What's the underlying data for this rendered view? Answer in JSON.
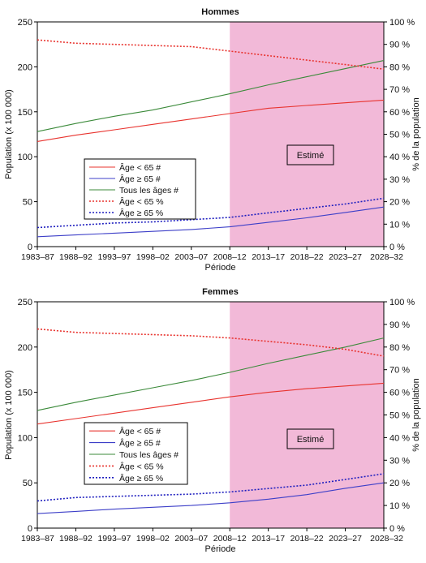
{
  "chart_data": [
    {
      "type": "line",
      "title": "Hommes",
      "xlabel": "Période",
      "ylabel": "Population (x 100 000)",
      "y2label": "% de la population",
      "ylim": [
        0,
        250
      ],
      "y2lim": [
        0,
        100
      ],
      "yticks": [
        "0",
        "50",
        "100",
        "150",
        "200",
        "250"
      ],
      "y2ticks": [
        "0 %",
        "10 %",
        "20 %",
        "30 %",
        "40 %",
        "50 %",
        "60 %",
        "70 %",
        "80 %",
        "90 %",
        "100 %"
      ],
      "categories": [
        "1983–87",
        "1988–92",
        "1993–97",
        "1998–02",
        "2003–07",
        "2008–12",
        "2013–17",
        "2018–22",
        "2023–27",
        "2028–32"
      ],
      "estimated_from": "2008–12",
      "estimated_label": "Estimé",
      "legend_position": "left-center",
      "series": [
        {
          "name": "Âge < 65 #",
          "axis": "left",
          "style": "solid",
          "color": "#e8332e",
          "values": [
            117,
            124,
            130,
            136,
            142,
            148,
            154,
            157,
            160,
            163
          ]
        },
        {
          "name": "Âge ≥ 65 #",
          "axis": "left",
          "style": "solid",
          "color": "#3d3fc8",
          "values": [
            11,
            13,
            15,
            17,
            19,
            22,
            27,
            32,
            38,
            44
          ]
        },
        {
          "name": "Tous les âges #",
          "axis": "left",
          "style": "solid",
          "color": "#3b8a3a",
          "values": [
            128,
            137,
            145,
            152,
            161,
            170,
            180,
            189,
            198,
            207
          ]
        },
        {
          "name": "Âge < 65 %",
          "axis": "right",
          "style": "dotted",
          "color": "#e8332e",
          "values": [
            92,
            90.5,
            90,
            89.5,
            89,
            87,
            85,
            83,
            81,
            79
          ]
        },
        {
          "name": "Âge ≥ 65 %",
          "axis": "right",
          "style": "dotted",
          "color": "#1f1fbf",
          "values": [
            8.5,
            9.5,
            10.5,
            11,
            12,
            13,
            15,
            17,
            19,
            21.5
          ]
        }
      ]
    },
    {
      "type": "line",
      "title": "Femmes",
      "xlabel": "Période",
      "ylabel": "Population (x 100 000)",
      "y2label": "% de la population",
      "ylim": [
        0,
        250
      ],
      "y2lim": [
        0,
        100
      ],
      "yticks": [
        "0",
        "50",
        "100",
        "150",
        "200",
        "250"
      ],
      "y2ticks": [
        "0 %",
        "10 %",
        "20 %",
        "30 %",
        "40 %",
        "50 %",
        "60 %",
        "70 %",
        "80 %",
        "90 %",
        "100 %"
      ],
      "categories": [
        "1983–87",
        "1988–92",
        "1993–97",
        "1998–02",
        "2003–07",
        "2008–12",
        "2013–17",
        "2018–22",
        "2023–27",
        "2028–32"
      ],
      "estimated_from": "2008–12",
      "estimated_label": "Estimé",
      "legend_position": "left-center",
      "series": [
        {
          "name": "Âge < 65 #",
          "axis": "left",
          "style": "solid",
          "color": "#e8332e",
          "values": [
            115,
            121,
            127,
            133,
            139,
            145,
            150,
            154,
            157,
            160
          ]
        },
        {
          "name": "Âge ≥ 65 #",
          "axis": "left",
          "style": "solid",
          "color": "#3d3fc8",
          "values": [
            16,
            18.5,
            21,
            23,
            25,
            28,
            32,
            37,
            44,
            50
          ]
        },
        {
          "name": "Tous les âges #",
          "axis": "left",
          "style": "solid",
          "color": "#3b8a3a",
          "values": [
            130,
            139,
            147,
            155,
            163,
            172,
            182,
            191,
            200,
            210
          ]
        },
        {
          "name": "Âge < 65 %",
          "axis": "right",
          "style": "dotted",
          "color": "#e8332e",
          "values": [
            88,
            86.5,
            86,
            85.5,
            85,
            84,
            82.5,
            81,
            79,
            76
          ]
        },
        {
          "name": "Âge ≥ 65 %",
          "axis": "right",
          "style": "dotted",
          "color": "#1f1fbf",
          "values": [
            12,
            13.5,
            14,
            14.5,
            15,
            16,
            17.5,
            19,
            21.5,
            24
          ]
        }
      ]
    }
  ]
}
